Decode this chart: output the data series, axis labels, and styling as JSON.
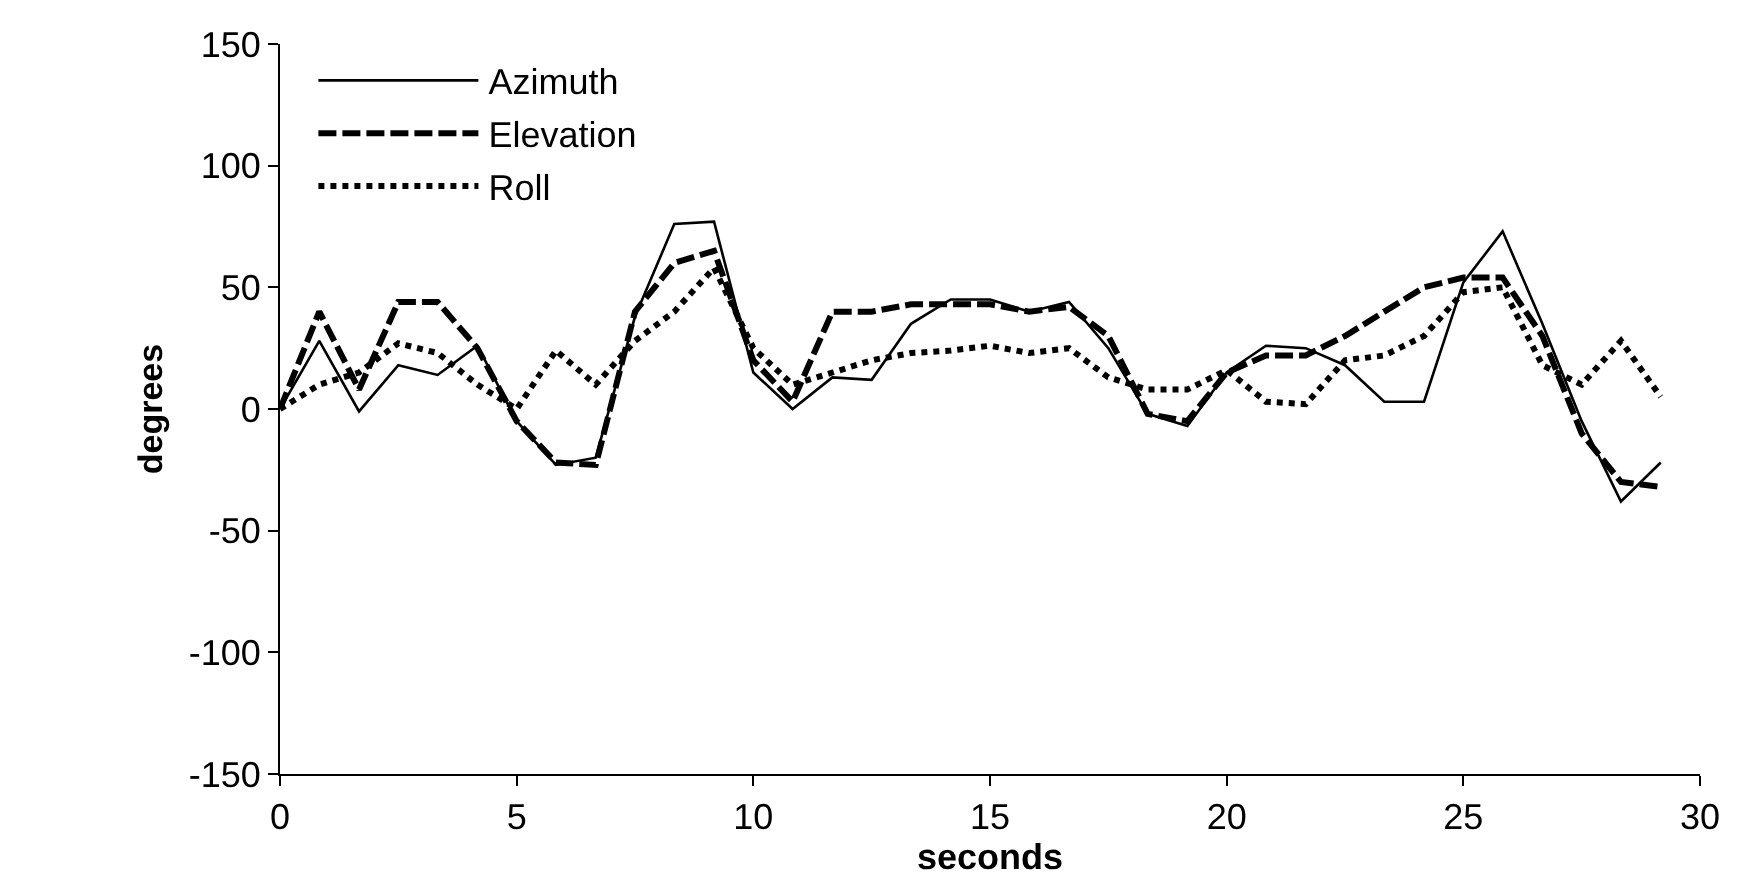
{
  "chart_data": {
    "type": "line",
    "xlabel": "seconds",
    "ylabel": "degrees",
    "x": [
      0,
      0.83,
      1.67,
      2.5,
      3.33,
      4.17,
      5,
      5.83,
      6.67,
      7.5,
      8.33,
      9.17,
      10,
      10.83,
      11.67,
      12.5,
      13.33,
      14.17,
      15,
      15.83,
      16.67,
      17.5,
      18.33,
      19.17,
      20,
      20.83,
      21.67,
      22.5,
      23.33,
      24.17,
      25,
      25.83,
      26.67,
      27.5,
      28.33,
      29.17
    ],
    "series": [
      {
        "name": "Azimuth",
        "color": "#000000",
        "line_style": "solid",
        "values": [
          0,
          28,
          -1,
          18,
          14,
          26,
          -5,
          -23,
          -20,
          38,
          76,
          77,
          15,
          0,
          13,
          12,
          35,
          45,
          45,
          40,
          44,
          25,
          -2,
          -7,
          15,
          26,
          25,
          18,
          3,
          3,
          52,
          73,
          35,
          -5,
          -38,
          -22
        ]
      },
      {
        "name": "Elevation",
        "color": "#000000",
        "line_style": "dashed",
        "values": [
          0,
          40,
          8,
          44,
          44,
          25,
          -5,
          -22,
          -23,
          40,
          60,
          65,
          20,
          3,
          40,
          40,
          43,
          43,
          43,
          40,
          42,
          30,
          -2,
          -5,
          15,
          22,
          22,
          30,
          40,
          50,
          54,
          54,
          30,
          -10,
          -30,
          -32
        ]
      },
      {
        "name": "Roll",
        "color": "#000000",
        "line_style": "dotted",
        "values": [
          0,
          10,
          15,
          27,
          23,
          10,
          0,
          24,
          10,
          28,
          40,
          58,
          25,
          10,
          15,
          20,
          23,
          24,
          26,
          23,
          25,
          13,
          8,
          8,
          16,
          3,
          2,
          20,
          22,
          30,
          48,
          50,
          18,
          10,
          28,
          5
        ]
      }
    ],
    "xlim": [
      0,
      30
    ],
    "xticks": [
      0,
      5,
      10,
      15,
      20,
      25,
      30
    ],
    "ylim": [
      -150,
      150
    ],
    "yticks": [
      -150,
      -100,
      -50,
      0,
      50,
      100,
      150
    ],
    "legend": "top left",
    "marker": "none"
  }
}
